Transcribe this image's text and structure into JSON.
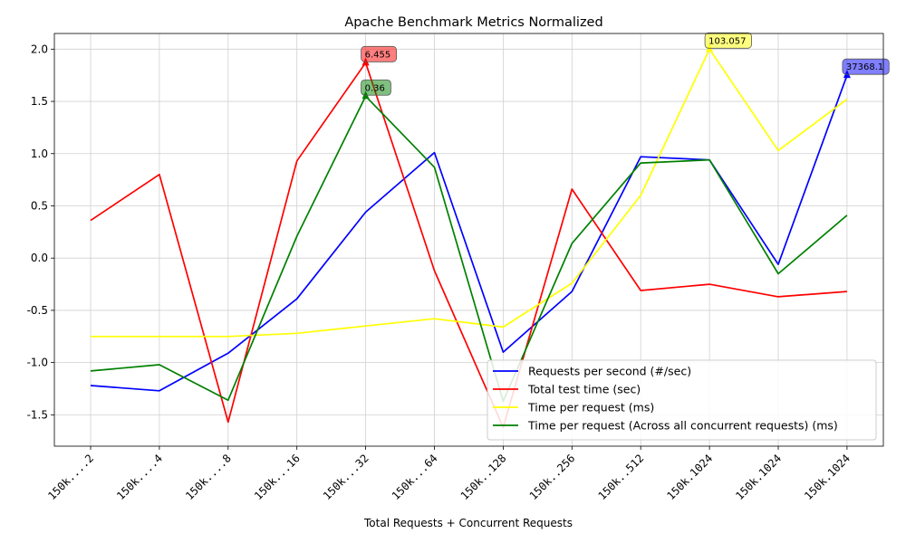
{
  "chart_data": {
    "type": "line",
    "title": "Apache Benchmark Metrics Normalized",
    "xlabel": "Total Requests + Concurrent Requests",
    "ylabel": "",
    "categories": [
      "150k....2",
      "150k....4",
      "150k....8",
      "150k...16",
      "150k...32",
      "150k...64",
      "150k..128",
      "150k..256",
      "150k..512",
      "150k.1024",
      "150k.1024",
      "150k.1024"
    ],
    "ylim": [
      -1.8,
      2.15
    ],
    "yticks": [
      "2.0",
      "1.5",
      "1.0",
      "0.5",
      "0.0",
      "-0.5",
      "-1.0",
      "-1.5"
    ],
    "yticks_values": [
      2.0,
      1.5,
      1.0,
      0.5,
      0.0,
      -0.5,
      -1.0,
      -1.5
    ],
    "grid": true,
    "legend_position": "lower-right",
    "series": [
      {
        "name": "Requests per second (#/sec)",
        "color": "#0000ff",
        "values": [
          -1.22,
          -1.27,
          -0.91,
          -0.39,
          0.44,
          1.01,
          -0.9,
          -0.32,
          0.97,
          0.94,
          -0.06,
          1.75
        ]
      },
      {
        "name": "Total test time (sec)",
        "color": "#ff0000",
        "values": [
          0.36,
          0.8,
          -1.57,
          0.93,
          1.87,
          -0.12,
          -1.62,
          0.66,
          -0.31,
          -0.25,
          -0.37,
          -0.32
        ]
      },
      {
        "name": "Time per request (ms)",
        "color": "#ffff00",
        "values": [
          -0.75,
          -0.75,
          -0.75,
          -0.72,
          -0.65,
          -0.58,
          -0.66,
          -0.24,
          0.6,
          2.0,
          1.03,
          1.52
        ]
      },
      {
        "name": "Time per request (Across all concurrent requests) (ms)",
        "color": "#008000",
        "values": [
          -1.08,
          -1.02,
          -1.36,
          0.21,
          1.55,
          0.87,
          -1.37,
          0.14,
          0.91,
          0.94,
          -0.15,
          0.41
        ]
      }
    ],
    "annotations": [
      {
        "text": "6.455",
        "series": 1,
        "index": 4,
        "color": "#ff0000"
      },
      {
        "text": "0.36",
        "series": 3,
        "index": 4,
        "color": "#008000"
      },
      {
        "text": "103.057",
        "series": 2,
        "index": 9,
        "color": "#ffff00"
      },
      {
        "text": "37368.1",
        "series": 0,
        "index": 11,
        "color": "#0000ff"
      }
    ]
  }
}
